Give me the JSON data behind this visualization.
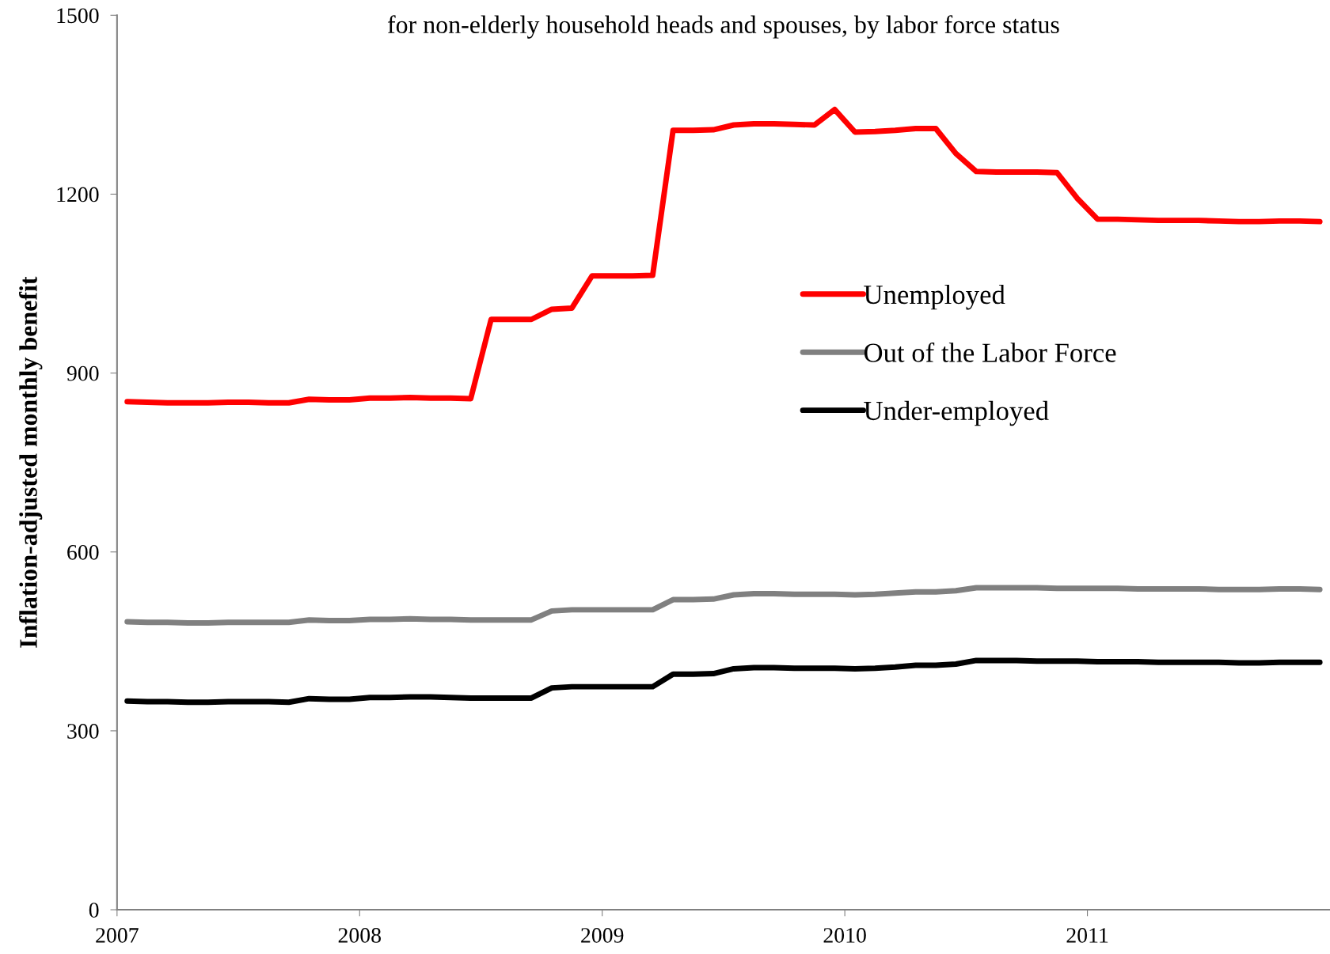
{
  "chart_data": {
    "type": "line",
    "subtitle": "for non-elderly household heads and spouses, by labor force status",
    "ylabel": "Inflation-adjusted monthly benefit",
    "xlim": [
      2007,
      2012
    ],
    "xticks": [
      2007,
      2008,
      2009,
      2010,
      2011
    ],
    "ylim": [
      0,
      1500
    ],
    "yticks": [
      0,
      300,
      600,
      900,
      1200,
      1500
    ],
    "grid": false,
    "legend": "right",
    "marker": "none",
    "line_style": "solid",
    "series": [
      {
        "name": "Unemployed",
        "color": "#ff0000",
        "values": [
          852,
          851,
          850,
          850,
          850,
          851,
          851,
          850,
          850,
          856,
          855,
          855,
          858,
          858,
          859,
          858,
          858,
          857,
          990,
          990,
          990,
          1007,
          1009,
          1063,
          1063,
          1063,
          1064,
          1307,
          1307,
          1308,
          1316,
          1318,
          1318,
          1317,
          1316,
          1342,
          1304,
          1305,
          1307,
          1310,
          1310,
          1268,
          1238,
          1237,
          1237,
          1237,
          1236,
          1193,
          1158,
          1158,
          1157,
          1156,
          1156,
          1156,
          1155,
          1154,
          1154,
          1155,
          1155,
          1154
        ]
      },
      {
        "name": "Out of the Labor Force",
        "color": "#808080",
        "values": [
          483,
          482,
          482,
          481,
          481,
          482,
          482,
          482,
          482,
          486,
          485,
          485,
          487,
          487,
          488,
          487,
          487,
          486,
          486,
          486,
          486,
          501,
          503,
          503,
          503,
          503,
          503,
          520,
          520,
          521,
          528,
          530,
          530,
          529,
          529,
          529,
          528,
          529,
          531,
          533,
          533,
          535,
          540,
          540,
          540,
          540,
          539,
          539,
          539,
          539,
          538,
          538,
          538,
          538,
          537,
          537,
          537,
          538,
          538,
          537
        ]
      },
      {
        "name": "Under-employed",
        "color": "#000000",
        "values": [
          350,
          349,
          349,
          348,
          348,
          349,
          349,
          349,
          348,
          354,
          353,
          353,
          356,
          356,
          357,
          357,
          356,
          355,
          355,
          355,
          355,
          372,
          374,
          374,
          374,
          374,
          374,
          395,
          395,
          396,
          404,
          406,
          406,
          405,
          405,
          405,
          404,
          405,
          407,
          410,
          410,
          412,
          418,
          418,
          418,
          417,
          417,
          417,
          416,
          416,
          416,
          415,
          415,
          415,
          415,
          414,
          414,
          415,
          415,
          415
        ]
      }
    ],
    "x": [
      2007.042,
      2007.125,
      2007.208,
      2007.292,
      2007.375,
      2007.458,
      2007.542,
      2007.625,
      2007.708,
      2007.792,
      2007.875,
      2007.958,
      2008.042,
      2008.125,
      2008.208,
      2008.292,
      2008.375,
      2008.458,
      2008.542,
      2008.625,
      2008.708,
      2008.792,
      2008.875,
      2008.958,
      2009.042,
      2009.125,
      2009.208,
      2009.292,
      2009.375,
      2009.458,
      2009.542,
      2009.625,
      2009.708,
      2009.792,
      2009.875,
      2009.958,
      2010.042,
      2010.125,
      2010.208,
      2010.292,
      2010.375,
      2010.458,
      2010.542,
      2010.625,
      2010.708,
      2010.792,
      2010.875,
      2010.958,
      2011.042,
      2011.125,
      2011.208,
      2011.292,
      2011.375,
      2011.458,
      2011.542,
      2011.625,
      2011.708,
      2011.792,
      2011.875,
      2011.958
    ]
  }
}
